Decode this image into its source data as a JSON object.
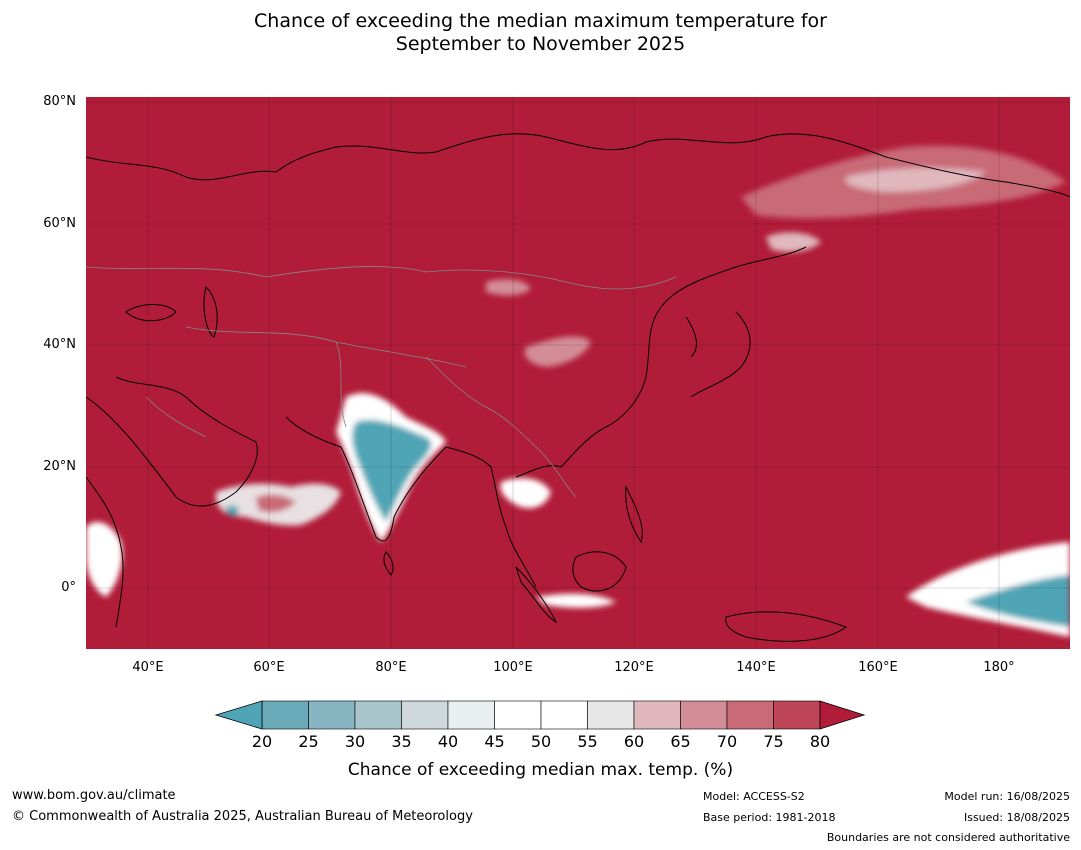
{
  "title": {
    "line1": "Chance of exceeding the median maximum temperature for",
    "line2": "September to November 2025"
  },
  "map": {
    "lat_labels": [
      "80°N",
      "60°N",
      "40°N",
      "20°N",
      "0°"
    ],
    "lon_labels": [
      "40°E",
      "60°E",
      "80°E",
      "100°E",
      "120°E",
      "140°E",
      "160°E",
      "180°"
    ],
    "background_color": "#b11c38",
    "land_outline_color": "#000000",
    "border_color": "#888888"
  },
  "colorbar": {
    "ticks": [
      "20",
      "25",
      "30",
      "35",
      "40",
      "45",
      "50",
      "55",
      "60",
      "65",
      "70",
      "75",
      "80"
    ],
    "under_color": "#4fa5b5",
    "over_color": "#b11c38",
    "colors": [
      "#6aaab8",
      "#87b6c2",
      "#a9c6cc",
      "#cfd9dc",
      "#e9eff0",
      "#ffffff",
      "#ffffff",
      "#e7e7e7",
      "#e0b8be",
      "#d38d97",
      "#c96a77",
      "#bd4556"
    ],
    "label": "Chance of exceeding median max. temp. (%)"
  },
  "footer": {
    "website": "www.bom.gov.au/climate",
    "copyright": "© Commonwealth of Australia 2025, Australian Bureau of Meteorology",
    "model": "Model: ACCESS-S2",
    "base_period": "Base period: 1981-2018",
    "model_run": "Model run: 16/08/2025",
    "issued": "Issued: 18/08/2025",
    "disclaimer": "Boundaries are not considered authoritative"
  }
}
